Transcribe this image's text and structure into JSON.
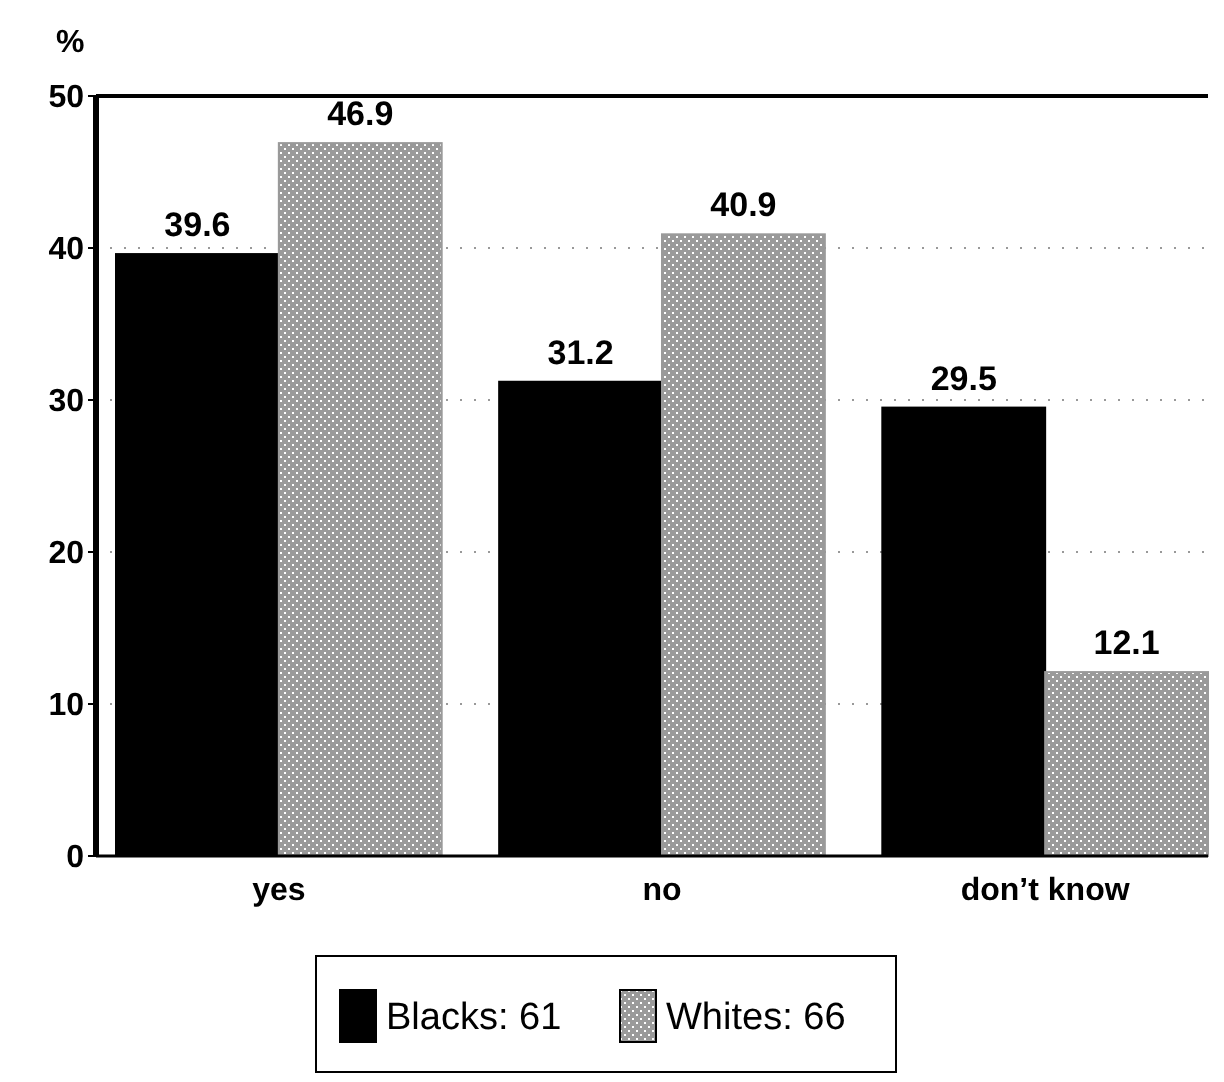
{
  "chart_data": {
    "type": "bar",
    "ylabel": "%",
    "categories": [
      "yes",
      "no",
      "don’t know"
    ],
    "series": [
      {
        "name": "Blacks: 61",
        "color": "#000000",
        "values": [
          39.6,
          31.2,
          29.5
        ]
      },
      {
        "name": "Whites: 66",
        "color": "#9a9a9a",
        "values": [
          46.9,
          40.9,
          12.1
        ]
      }
    ],
    "ylim": [
      0,
      50
    ],
    "yticks": [
      0,
      10,
      20,
      30,
      40,
      50
    ],
    "grid": "y",
    "data_labels": true,
    "legend": "bottom"
  }
}
